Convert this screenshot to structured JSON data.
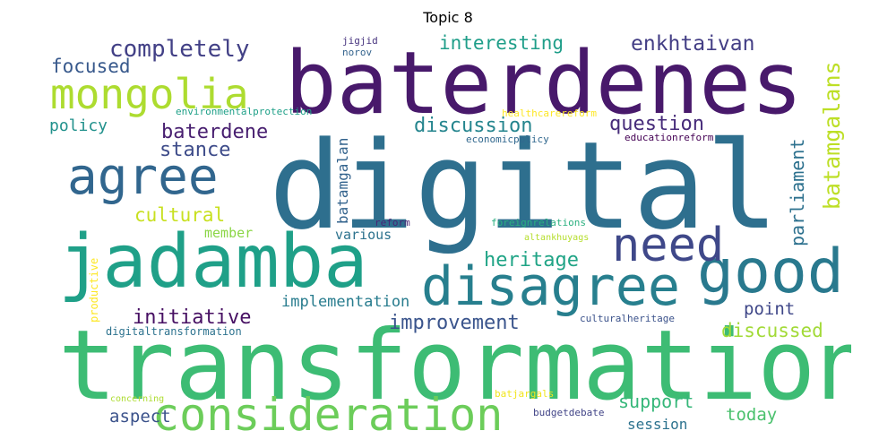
{
  "title": "Topic 8",
  "chart_data": {
    "type": "wordcloud",
    "title": "Topic 8",
    "words": [
      {
        "text": "digital",
        "color": "#2e6f8e"
      },
      {
        "text": "transformation",
        "color": "#3dbc74"
      },
      {
        "text": "baterdenes",
        "color": "#48196b"
      },
      {
        "text": "jadamba",
        "color": "#1fa088"
      },
      {
        "text": "good",
        "color": "#29798e"
      },
      {
        "text": "disagree",
        "color": "#277f8e"
      },
      {
        "text": "consideration",
        "color": "#6ccd5a"
      },
      {
        "text": "agree",
        "color": "#31668e"
      },
      {
        "text": "mongolia",
        "color": "#addc30"
      },
      {
        "text": "need",
        "color": "#3f4889"
      },
      {
        "text": "completely",
        "color": "#424086"
      },
      {
        "text": "enkhtaivan",
        "color": "#433e85"
      },
      {
        "text": "interesting",
        "color": "#1f9e89"
      },
      {
        "text": "focused",
        "color": "#38598c"
      },
      {
        "text": "batamgalans",
        "color": "#bddf26"
      },
      {
        "text": "discussion",
        "color": "#25858e"
      },
      {
        "text": "question",
        "color": "#472c7a"
      },
      {
        "text": "baterdene",
        "color": "#481f70"
      },
      {
        "text": "stance",
        "color": "#3e4c8a"
      },
      {
        "text": "policy",
        "color": "#21918c"
      },
      {
        "text": "parliament",
        "color": "#2d718e"
      },
      {
        "text": "cultural",
        "color": "#c8e020"
      },
      {
        "text": "batamgalan",
        "color": "#33638d"
      },
      {
        "text": "heritage",
        "color": "#20a486"
      },
      {
        "text": "initiative",
        "color": "#471063"
      },
      {
        "text": "implementation",
        "color": "#287c8e"
      },
      {
        "text": "improvement",
        "color": "#3a548c"
      },
      {
        "text": "point",
        "color": "#3f4788"
      },
      {
        "text": "discussed",
        "color": "#a2da37"
      },
      {
        "text": "support",
        "color": "#35b779"
      },
      {
        "text": "today",
        "color": "#4ac16d"
      },
      {
        "text": "aspect",
        "color": "#3b528b"
      },
      {
        "text": "session",
        "color": "#2c728e"
      },
      {
        "text": "member",
        "color": "#8bd646"
      },
      {
        "text": "various",
        "color": "#2c728e"
      },
      {
        "text": "productive",
        "color": "#fde725"
      },
      {
        "text": "digitaltransformation",
        "color": "#2c728e"
      },
      {
        "text": "culturalheritage",
        "color": "#3b528b"
      },
      {
        "text": "foreignrelations",
        "color": "#2ab07f"
      },
      {
        "text": "altankhuyags",
        "color": "#b5de2b"
      },
      {
        "text": "reform",
        "color": "#482475"
      },
      {
        "text": "jigjid",
        "color": "#46337e"
      },
      {
        "text": "norov",
        "color": "#33638d"
      },
      {
        "text": "environmentalprotection",
        "color": "#1fa088"
      },
      {
        "text": "healthcarereform",
        "color": "#fde725"
      },
      {
        "text": "economicpolicy",
        "color": "#31688e"
      },
      {
        "text": "educationreform",
        "color": "#440154"
      },
      {
        "text": "concerning",
        "color": "#addc30"
      },
      {
        "text": "batjargals",
        "color": "#f1e51d"
      },
      {
        "text": "budgetdebate",
        "color": "#414487"
      }
    ]
  }
}
